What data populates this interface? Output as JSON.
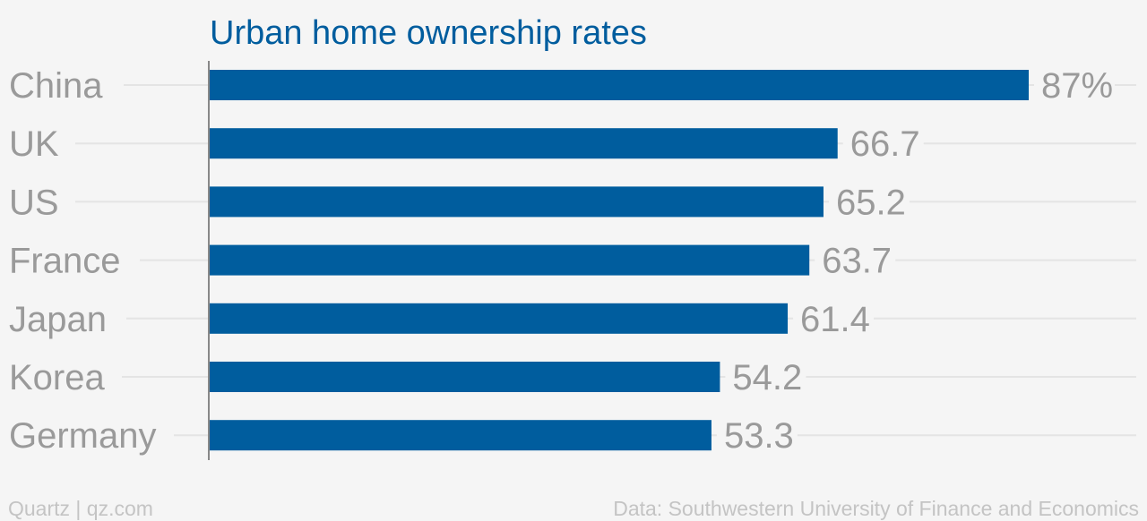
{
  "chart_data": {
    "type": "bar",
    "orientation": "horizontal",
    "title": "Urban home ownership rates",
    "categories": [
      "China",
      "UK",
      "US",
      "France",
      "Japan",
      "Korea",
      "Germany"
    ],
    "values": [
      87,
      66.7,
      65.2,
      63.7,
      61.4,
      54.2,
      53.3
    ],
    "value_labels": [
      "87%",
      "66.7",
      "65.2",
      "63.7",
      "61.4",
      "54.2",
      "53.3"
    ],
    "xlim": [
      0,
      100
    ],
    "xlabel": "",
    "ylabel": "",
    "grid": true,
    "legend": "none",
    "bar_color": "#005d9e"
  },
  "footer": {
    "credit": "Quartz | qz.com",
    "source": "Data: Southwestern University of Finance and Economics"
  },
  "colors": {
    "background": "#f5f5f5",
    "title": "#005d9e",
    "label": "#9a9a9a",
    "footer": "#c4c4c4"
  }
}
